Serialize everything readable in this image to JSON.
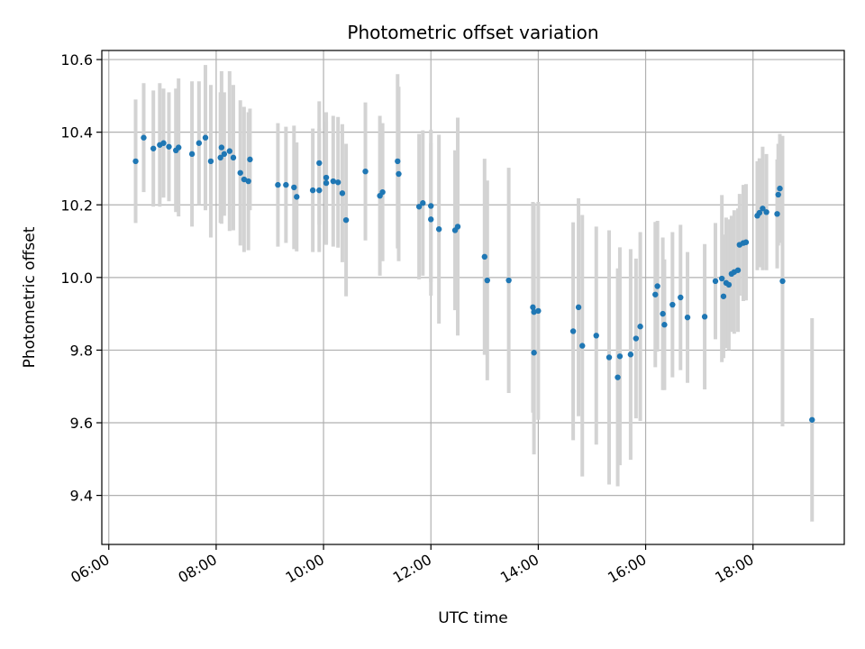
{
  "chart_data": {
    "type": "scatter",
    "title": "Photometric offset variation",
    "xlabel": "UTC time",
    "ylabel": "Photometric offset",
    "x_unit": "hours UTC",
    "xlim": [
      5.87,
      19.7
    ],
    "ylim": [
      9.265,
      10.625
    ],
    "grid": true,
    "x_ticks": [
      {
        "value": 6,
        "label": "06:00"
      },
      {
        "value": 8,
        "label": "08:00"
      },
      {
        "value": 10,
        "label": "10:00"
      },
      {
        "value": 12,
        "label": "12:00"
      },
      {
        "value": 14,
        "label": "14:00"
      },
      {
        "value": 16,
        "label": "16:00"
      },
      {
        "value": 18,
        "label": "18:00"
      }
    ],
    "y_ticks": [
      {
        "value": 9.4,
        "label": "9.4"
      },
      {
        "value": 9.6,
        "label": "9.6"
      },
      {
        "value": 9.8,
        "label": "9.8"
      },
      {
        "value": 10.0,
        "label": "10.0"
      },
      {
        "value": 10.2,
        "label": "10.2"
      },
      {
        "value": 10.4,
        "label": "10.4"
      },
      {
        "value": 10.6,
        "label": "10.6"
      }
    ],
    "colors": {
      "points": "#1f77b4",
      "errorbars": "#d3d3d3"
    },
    "points": [
      [
        6.5,
        10.32,
        0.17
      ],
      [
        6.65,
        10.385,
        0.15
      ],
      [
        6.83,
        10.355,
        0.16
      ],
      [
        6.95,
        10.365,
        0.17
      ],
      [
        7.02,
        10.37,
        0.15
      ],
      [
        7.12,
        10.36,
        0.15
      ],
      [
        7.25,
        10.35,
        0.17
      ],
      [
        7.3,
        10.358,
        0.19
      ],
      [
        7.55,
        10.34,
        0.2
      ],
      [
        7.68,
        10.37,
        0.17
      ],
      [
        7.8,
        10.385,
        0.2
      ],
      [
        7.9,
        10.32,
        0.21
      ],
      [
        8.08,
        10.33,
        0.18
      ],
      [
        8.1,
        10.358,
        0.21
      ],
      [
        8.15,
        10.34,
        0.17
      ],
      [
        8.25,
        10.348,
        0.22
      ],
      [
        8.32,
        10.33,
        0.2
      ],
      [
        8.45,
        10.288,
        0.2
      ],
      [
        8.52,
        10.27,
        0.2
      ],
      [
        8.6,
        10.265,
        0.19
      ],
      [
        8.63,
        10.325,
        0.14
      ],
      [
        9.15,
        10.255,
        0.17
      ],
      [
        9.3,
        10.255,
        0.16
      ],
      [
        9.45,
        10.248,
        0.17
      ],
      [
        9.5,
        10.222,
        0.15
      ],
      [
        9.8,
        10.24,
        0.17
      ],
      [
        9.92,
        10.315,
        0.17
      ],
      [
        9.92,
        10.24,
        0.17
      ],
      [
        10.05,
        10.275,
        0.18
      ],
      [
        10.05,
        10.26,
        0.17
      ],
      [
        10.18,
        10.265,
        0.18
      ],
      [
        10.27,
        10.262,
        0.18
      ],
      [
        10.35,
        10.232,
        0.19
      ],
      [
        10.42,
        10.158,
        0.21
      ],
      [
        10.78,
        10.292,
        0.19
      ],
      [
        11.05,
        10.225,
        0.22
      ],
      [
        11.1,
        10.235,
        0.19
      ],
      [
        11.38,
        10.32,
        0.24
      ],
      [
        11.4,
        10.285,
        0.24
      ],
      [
        11.78,
        10.195,
        0.2
      ],
      [
        11.85,
        10.205,
        0.2
      ],
      [
        12.0,
        10.16,
        0.21
      ],
      [
        12.0,
        10.197,
        0.21
      ],
      [
        12.15,
        10.133,
        0.26
      ],
      [
        12.45,
        10.13,
        0.22
      ],
      [
        12.5,
        10.14,
        0.3
      ],
      [
        13.0,
        10.057,
        0.27
      ],
      [
        13.05,
        9.992,
        0.275
      ],
      [
        13.45,
        9.992,
        0.31
      ],
      [
        13.9,
        9.918,
        0.29
      ],
      [
        13.92,
        9.793,
        0.28
      ],
      [
        13.92,
        9.905,
        0.3
      ],
      [
        14.0,
        9.908,
        0.3
      ],
      [
        14.65,
        9.852,
        0.3
      ],
      [
        14.75,
        9.918,
        0.3
      ],
      [
        14.82,
        9.812,
        0.36
      ],
      [
        15.08,
        9.84,
        0.3
      ],
      [
        15.32,
        9.78,
        0.35
      ],
      [
        15.48,
        9.725,
        0.3
      ],
      [
        15.52,
        9.783,
        0.3
      ],
      [
        15.72,
        9.788,
        0.29
      ],
      [
        15.82,
        9.832,
        0.22
      ],
      [
        15.9,
        9.865,
        0.26
      ],
      [
        16.18,
        9.953,
        0.2
      ],
      [
        16.22,
        9.976,
        0.18
      ],
      [
        16.32,
        9.9,
        0.21
      ],
      [
        16.35,
        9.87,
        0.18
      ],
      [
        16.5,
        9.925,
        0.2
      ],
      [
        16.65,
        9.945,
        0.2
      ],
      [
        16.78,
        9.89,
        0.18
      ],
      [
        17.1,
        9.892,
        0.2
      ],
      [
        17.3,
        9.99,
        0.16
      ],
      [
        17.42,
        9.997,
        0.23
      ],
      [
        17.45,
        9.948,
        0.17
      ],
      [
        17.5,
        9.985,
        0.18
      ],
      [
        17.55,
        9.98,
        0.18
      ],
      [
        17.6,
        10.01,
        0.16
      ],
      [
        17.65,
        10.015,
        0.17
      ],
      [
        17.72,
        10.02,
        0.17
      ],
      [
        17.75,
        10.09,
        0.14
      ],
      [
        17.82,
        10.095,
        0.16
      ],
      [
        17.87,
        10.097,
        0.16
      ],
      [
        18.08,
        10.17,
        0.15
      ],
      [
        18.12,
        10.178,
        0.15
      ],
      [
        18.18,
        10.19,
        0.17
      ],
      [
        18.25,
        10.18,
        0.16
      ],
      [
        18.45,
        10.175,
        0.15
      ],
      [
        18.47,
        10.228,
        0.14
      ],
      [
        18.5,
        10.245,
        0.15
      ],
      [
        18.55,
        9.99,
        0.4
      ],
      [
        19.1,
        9.608,
        0.28
      ]
    ]
  }
}
